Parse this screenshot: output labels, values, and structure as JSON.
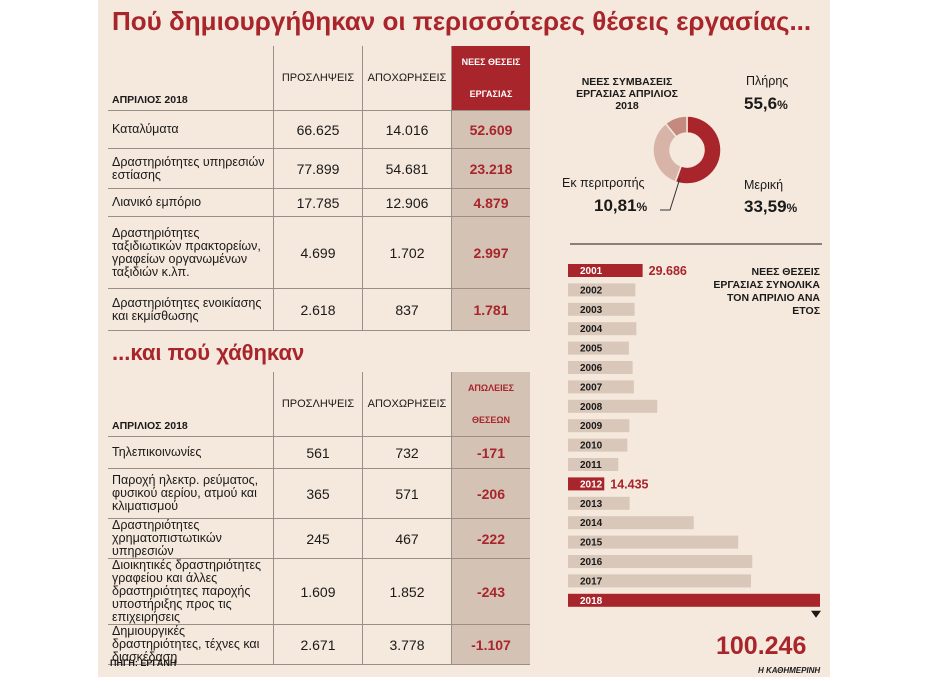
{
  "title": "Πού δημιουργήθηκαν οι περισσότερες θέσεις εργασίας...",
  "subtitle": "...και πού χάθηκαν",
  "source": "ΠΗΓΗ: ΕΡΓΑΝΗ",
  "credit": "Η ΚΑΘΗΜΕΡΙΝΗ",
  "colors": {
    "accent": "#a8252b",
    "bar": "#d9c7ba",
    "highlight_col": "#d4c2b5",
    "background": "#f5e8dc"
  },
  "table_created": {
    "header": [
      "ΑΠΡΙΛΙΟΣ 2018",
      "ΠΡΟΣΛΗΨΕΙΣ",
      "ΑΠΟΧΩΡΗΣΕΙΣ",
      "ΝΕΕΣ ΘΕΣΕΙΣ",
      "ΕΡΓΑΣΙΑΣ"
    ],
    "rows": [
      {
        "label": "Καταλύματα",
        "hires": "66.625",
        "departures": "14.016",
        "net": "52.609"
      },
      {
        "label": "Δραστηριότητες υπηρεσιών εστίασης",
        "hires": "77.899",
        "departures": "54.681",
        "net": "23.218"
      },
      {
        "label": "Λιανικό εμπόριο",
        "hires": "17.785",
        "departures": "12.906",
        "net": "4.879"
      },
      {
        "label": "Δραστηριότητες ταξιδιωτικών πρακτορείων, γραφείων οργανωμένων ταξιδιών κ.λπ.",
        "hires": "4.699",
        "departures": "1.702",
        "net": "2.997"
      },
      {
        "label": "Δραστηριότητες ενοικίασης και εκμίσθωσης",
        "hires": "2.618",
        "departures": "837",
        "net": "1.781"
      }
    ]
  },
  "table_lost": {
    "header": [
      "ΑΠΡΙΛΙΟΣ 2018",
      "ΠΡΟΣΛΗΨΕΙΣ",
      "ΑΠΟΧΩΡΗΣΕΙΣ",
      "ΑΠΩΛΕΙΕΣ",
      "ΘΕΣΕΩΝ"
    ],
    "rows": [
      {
        "label": "Τηλεπικοινωνίες",
        "hires": "561",
        "departures": "732",
        "net": "-171"
      },
      {
        "label": "Παροχή ηλεκτρ. ρεύματος, φυσικού αερίου, ατμού και κλιματισμού",
        "hires": "365",
        "departures": "571",
        "net": "-206"
      },
      {
        "label": "Δραστηριότητες χρηματοπιστωτικών υπηρεσιών",
        "hires": "245",
        "departures": "467",
        "net": "-222"
      },
      {
        "label": "Διοικητικές δραστηριότητες γραφείου και άλλες δραστηριότητες παροχής υποστήριξης προς τις επιχειρήσεις",
        "hires": "1.609",
        "departures": "1.852",
        "net": "-243"
      },
      {
        "label": "Δημιουργικές δραστηριότητες, τέχνες και διασκέδαση",
        "hires": "2.671",
        "departures": "3.778",
        "net": "-1.107"
      }
    ]
  },
  "chart_data": [
    {
      "type": "pie",
      "title": "ΝΕΕΣ ΣΥΜΒΑΣΕΙΣ ΕΡΓΑΣΙΑΣ ΑΠΡΙΛΙΟΣ 2018",
      "slices": [
        {
          "label": "Πλήρης",
          "value": 55.6,
          "display": "55,6",
          "unit": "%",
          "color": "#a8252b"
        },
        {
          "label": "Μερική",
          "value": 33.59,
          "display": "33,59",
          "unit": "%",
          "color": "#d7b3a8"
        },
        {
          "label": "Εκ περιτροπής",
          "value": 10.81,
          "display": "10,81",
          "unit": "%",
          "color": "#c48a80"
        }
      ]
    },
    {
      "type": "bar",
      "orientation": "horizontal",
      "title": "ΝΕΕΣ ΘΕΣΕΙΣ ΕΡΓΑΣΙΑΣ ΣΥΝΟΛΙΚΑ ΤΟΝ ΑΠΡΙΛΙΟ ΑΝΑ ΕΤΟΣ",
      "categories": [
        "2001",
        "2002",
        "2003",
        "2004",
        "2005",
        "2006",
        "2007",
        "2008",
        "2009",
        "2010",
        "2011",
        "2012",
        "2013",
        "2014",
        "2015",
        "2016",
        "2017",
        "2018"
      ],
      "values": [
        29686,
        26800,
        26500,
        27200,
        24200,
        25700,
        26200,
        35500,
        24400,
        23600,
        20000,
        14435,
        24500,
        50000,
        67700,
        73300,
        72800,
        100246
      ],
      "labels": {
        "2001": "29.686",
        "2012": "14.435",
        "2018": "100.246"
      },
      "highlighted": [
        "2001",
        "2012",
        "2018"
      ],
      "xlim": [
        0,
        100246
      ]
    }
  ]
}
